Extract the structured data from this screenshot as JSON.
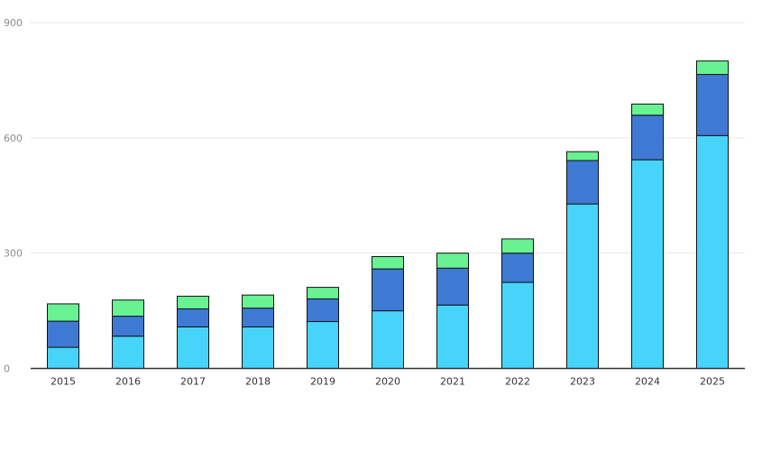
{
  "chart_data": {
    "type": "bar",
    "stacked": true,
    "title": "",
    "xlabel": "",
    "ylabel": "",
    "ylim": [
      0,
      900
    ],
    "yticks": [
      0,
      300,
      600,
      900
    ],
    "grid": true,
    "legend": "none",
    "categories": [
      "2015",
      "2016",
      "2017",
      "2018",
      "2019",
      "2020",
      "2021",
      "2022",
      "2023",
      "2024",
      "2025"
    ],
    "series": [
      {
        "color": "#47d4fb",
        "values": [
          55,
          84,
          108,
          108,
          122,
          150,
          165,
          224,
          428,
          543,
          606
        ]
      },
      {
        "color": "#3e7ad3",
        "values": [
          68,
          52,
          47,
          49,
          59,
          109,
          96,
          76,
          113,
          116,
          159
        ]
      },
      {
        "color": "#68f292",
        "values": [
          45,
          42,
          33,
          34,
          30,
          32,
          39,
          37,
          23,
          29,
          35
        ]
      }
    ]
  }
}
